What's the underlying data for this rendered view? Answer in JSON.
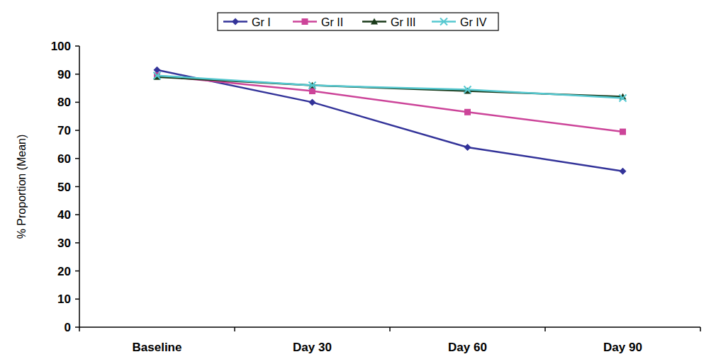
{
  "chart_data": {
    "type": "line",
    "y_label": "% Proportion (Mean)",
    "categories": [
      "Baseline",
      "Day 30",
      "Day 60",
      "Day 90"
    ],
    "series": [
      {
        "name": "Gr I",
        "color": "#333399",
        "marker": "diamond",
        "line_style": "solid",
        "values": [
          91.5,
          80,
          64,
          55.5
        ]
      },
      {
        "name": "Gr II",
        "color": "#cc4499",
        "marker": "square",
        "line_style": "solid",
        "values": [
          89.5,
          84,
          76.5,
          69.5
        ]
      },
      {
        "name": "Gr III",
        "color": "#1a3a1a",
        "marker": "triangle",
        "line_style": "solid",
        "values": [
          89,
          86,
          84,
          82
        ]
      },
      {
        "name": "Gr IV",
        "color": "#55c8d0",
        "marker": "x",
        "line_style": "solid",
        "values": [
          89.5,
          86,
          84.5,
          81.5
        ]
      }
    ],
    "ylim": [
      0,
      100
    ],
    "yticks": [
      0,
      10,
      20,
      30,
      40,
      50,
      60,
      70,
      80,
      90,
      100
    ],
    "grid": false,
    "legend": "top"
  }
}
